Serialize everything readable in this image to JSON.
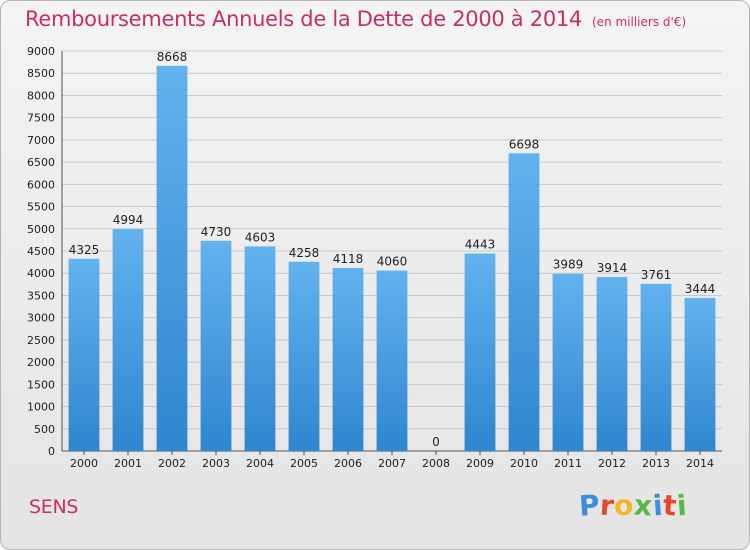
{
  "chart_data": {
    "type": "bar",
    "title": "Remboursements Annuels de la Dette de 2000 à 2014",
    "unit_note": "(en milliers d'€)",
    "categories": [
      "2000",
      "2001",
      "2002",
      "2003",
      "2004",
      "2005",
      "2006",
      "2007",
      "2008",
      "2009",
      "2010",
      "2011",
      "2012",
      "2013",
      "2014"
    ],
    "values": [
      4325,
      4994,
      8668,
      4730,
      4603,
      4258,
      4118,
      4060,
      0,
      4443,
      6698,
      3989,
      3914,
      3761,
      3444
    ],
    "data_labels": [
      "4325",
      "4994",
      "8668",
      "4730",
      "4603",
      "4258",
      "4118",
      "4060",
      "0",
      "4443",
      "6698",
      "3989",
      "3914",
      "3761",
      "3444"
    ],
    "ylim": [
      0,
      9000
    ],
    "y_ticks": [
      0,
      500,
      1000,
      1500,
      2000,
      2500,
      3000,
      3500,
      4000,
      4500,
      5000,
      5500,
      6000,
      6500,
      7000,
      7500,
      8000,
      8500,
      9000
    ],
    "y_tick_labels": [
      "0",
      "500",
      "1000",
      "1500",
      "2000",
      "2500",
      "3000",
      "3500",
      "4000",
      "4500",
      "5000",
      "5500",
      "6000",
      "6500",
      "7000",
      "7500",
      "8000",
      "8500",
      "9000"
    ],
    "xlabel": "",
    "ylabel": "",
    "grid": true,
    "bar_color": "#4a9ee0",
    "title_color": "#c6305c"
  },
  "footer": {
    "commune": "SENS",
    "logo_letters": [
      "P",
      "r",
      "o",
      "x",
      "i",
      "t",
      "i"
    ],
    "logo_colors": [
      "#3a8fd8",
      "#e8462a",
      "#f3b62b",
      "#58b948",
      "#3a8fd8",
      "#e8462a",
      "#58b948"
    ]
  }
}
